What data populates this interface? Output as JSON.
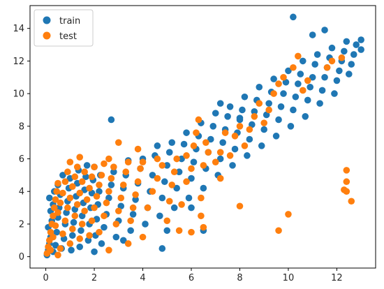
{
  "chart_data": {
    "type": "scatter",
    "title": "",
    "xlabel": "",
    "ylabel": "",
    "xlim": [
      -0.65,
      13.6
    ],
    "ylim": [
      -0.7,
      15.4
    ],
    "x_ticks": [
      0,
      2,
      4,
      6,
      8,
      10,
      12
    ],
    "y_ticks": [
      0,
      2,
      4,
      6,
      8,
      10,
      12,
      14
    ],
    "grid": false,
    "legend_position": "top-left",
    "series": [
      {
        "name": "train",
        "color": "#1f77b4",
        "points": [
          [
            0.05,
            0.1
          ],
          [
            0.1,
            0.4
          ],
          [
            0.15,
            0.8
          ],
          [
            0.2,
            1.2
          ],
          [
            0.1,
            1.8
          ],
          [
            0.25,
            2.2
          ],
          [
            0.2,
            2.8
          ],
          [
            0.3,
            3.2
          ],
          [
            0.15,
            3.6
          ],
          [
            0.35,
            4.0
          ],
          [
            0.3,
            0.3
          ],
          [
            0.4,
            0.7
          ],
          [
            0.45,
            1.5
          ],
          [
            0.5,
            2.4
          ],
          [
            0.55,
            3.0
          ],
          [
            0.6,
            3.8
          ],
          [
            0.5,
            4.4
          ],
          [
            0.7,
            5.0
          ],
          [
            0.65,
            0.5
          ],
          [
            0.75,
            1.1
          ],
          [
            0.8,
            2.0
          ],
          [
            0.85,
            2.7
          ],
          [
            0.9,
            3.4
          ],
          [
            0.95,
            4.2
          ],
          [
            1.0,
            4.8
          ],
          [
            1.05,
            0.4
          ],
          [
            1.1,
            1.3
          ],
          [
            1.15,
            2.1
          ],
          [
            1.2,
            2.9
          ],
          [
            1.25,
            3.7
          ],
          [
            1.3,
            4.5
          ],
          [
            1.35,
            5.3
          ],
          [
            1.4,
            0.6
          ],
          [
            1.45,
            1.6
          ],
          [
            1.5,
            2.5
          ],
          [
            1.55,
            3.3
          ],
          [
            1.6,
            4.1
          ],
          [
            1.65,
            4.9
          ],
          [
            1.7,
            5.6
          ],
          [
            1.75,
            1.0
          ],
          [
            1.8,
            2.0
          ],
          [
            1.85,
            3.0
          ],
          [
            1.9,
            3.9
          ],
          [
            1.95,
            4.7
          ],
          [
            2.0,
            5.5
          ],
          [
            2.05,
            1.3
          ],
          [
            2.1,
            2.3
          ],
          [
            2.15,
            3.2
          ],
          [
            2.2,
            4.0
          ],
          [
            2.25,
            5.0
          ],
          [
            2.3,
            0.8
          ],
          [
            2.4,
            1.8
          ],
          [
            2.5,
            2.6
          ],
          [
            2.6,
            3.6
          ],
          [
            2.7,
            4.4
          ],
          [
            2.8,
            5.2
          ],
          [
            2.9,
            1.2
          ],
          [
            3.0,
            2.2
          ],
          [
            3.1,
            3.1
          ],
          [
            3.2,
            4.2
          ],
          [
            3.3,
            5.0
          ],
          [
            3.4,
            5.9
          ],
          [
            3.5,
            1.6
          ],
          [
            3.6,
            2.6
          ],
          [
            3.7,
            3.5
          ],
          [
            3.8,
            4.5
          ],
          [
            3.9,
            5.4
          ],
          [
            4.0,
            6.0
          ],
          [
            4.1,
            2.0
          ],
          [
            4.2,
            3.0
          ],
          [
            4.3,
            4.0
          ],
          [
            4.4,
            5.0
          ],
          [
            4.5,
            6.2
          ],
          [
            4.6,
            6.8
          ],
          [
            4.7,
            2.5
          ],
          [
            4.8,
            3.6
          ],
          [
            4.9,
            4.6
          ],
          [
            5.0,
            5.6
          ],
          [
            5.1,
            6.4
          ],
          [
            5.2,
            7.0
          ],
          [
            5.3,
            3.0
          ],
          [
            5.4,
            4.2
          ],
          [
            5.5,
            5.2
          ],
          [
            5.6,
            6.0
          ],
          [
            5.7,
            6.9
          ],
          [
            5.8,
            7.6
          ],
          [
            5.9,
            3.6
          ],
          [
            6.0,
            4.8
          ],
          [
            6.1,
            5.8
          ],
          [
            6.2,
            6.6
          ],
          [
            6.3,
            7.4
          ],
          [
            6.4,
            8.2
          ],
          [
            6.5,
            4.2
          ],
          [
            6.6,
            5.4
          ],
          [
            6.7,
            6.4
          ],
          [
            6.8,
            7.2
          ],
          [
            6.9,
            8.0
          ],
          [
            7.0,
            8.8
          ],
          [
            7.1,
            5.0
          ],
          [
            7.2,
            6.0
          ],
          [
            7.3,
            7.0
          ],
          [
            7.4,
            7.8
          ],
          [
            7.5,
            8.6
          ],
          [
            7.6,
            9.2
          ],
          [
            7.7,
            5.6
          ],
          [
            7.8,
            6.6
          ],
          [
            7.9,
            7.6
          ],
          [
            8.0,
            8.4
          ],
          [
            8.1,
            9.0
          ],
          [
            8.2,
            9.8
          ],
          [
            8.3,
            6.2
          ],
          [
            8.4,
            7.2
          ],
          [
            8.5,
            8.1
          ],
          [
            8.6,
            8.9
          ],
          [
            8.7,
            9.6
          ],
          [
            8.8,
            10.4
          ],
          [
            8.9,
            6.8
          ],
          [
            9.0,
            7.8
          ],
          [
            9.1,
            8.7
          ],
          [
            9.2,
            9.4
          ],
          [
            9.3,
            10.1
          ],
          [
            9.4,
            10.9
          ],
          [
            9.5,
            7.4
          ],
          [
            9.6,
            8.4
          ],
          [
            9.7,
            9.2
          ],
          [
            9.8,
            10.0
          ],
          [
            9.9,
            10.7
          ],
          [
            10.0,
            11.4
          ],
          [
            10.1,
            8.0
          ],
          [
            10.2,
            9.0
          ],
          [
            10.3,
            9.8
          ],
          [
            10.4,
            10.6
          ],
          [
            10.5,
            11.2
          ],
          [
            10.6,
            12.0
          ],
          [
            10.7,
            8.6
          ],
          [
            10.8,
            9.6
          ],
          [
            10.9,
            10.4
          ],
          [
            11.0,
            11.0
          ],
          [
            11.1,
            11.8
          ],
          [
            11.2,
            12.4
          ],
          [
            11.3,
            9.4
          ],
          [
            11.4,
            10.2
          ],
          [
            11.5,
            11.0
          ],
          [
            11.6,
            11.6
          ],
          [
            11.7,
            12.2
          ],
          [
            11.8,
            12.8
          ],
          [
            11.9,
            10.0
          ],
          [
            12.0,
            10.8
          ],
          [
            12.1,
            11.4
          ],
          [
            12.2,
            12.0
          ],
          [
            12.3,
            12.6
          ],
          [
            12.4,
            13.2
          ],
          [
            12.5,
            11.2
          ],
          [
            12.6,
            11.8
          ],
          [
            12.7,
            12.4
          ],
          [
            12.8,
            13.0
          ],
          [
            13.0,
            12.7
          ],
          [
            13.0,
            13.3
          ],
          [
            10.2,
            14.7
          ],
          [
            11.5,
            13.9
          ],
          [
            11.0,
            13.6
          ],
          [
            8.0,
            8.5
          ],
          [
            7.2,
            9.4
          ],
          [
            2.7,
            8.4
          ],
          [
            5.0,
            1.6
          ],
          [
            6.5,
            1.6
          ],
          [
            6.0,
            3.0
          ],
          [
            4.8,
            0.5
          ],
          [
            3.2,
            1.0
          ],
          [
            2.0,
            0.3
          ]
        ]
      },
      {
        "name": "test",
        "color": "#ff7f0e",
        "points": [
          [
            0.05,
            0.2
          ],
          [
            0.1,
            0.6
          ],
          [
            0.15,
            1.0
          ],
          [
            0.2,
            1.5
          ],
          [
            0.25,
            2.0
          ],
          [
            0.3,
            2.5
          ],
          [
            0.35,
            3.0
          ],
          [
            0.4,
            3.5
          ],
          [
            0.45,
            4.0
          ],
          [
            0.5,
            4.5
          ],
          [
            0.2,
            0.4
          ],
          [
            0.3,
            1.2
          ],
          [
            0.4,
            1.9
          ],
          [
            0.5,
            2.7
          ],
          [
            0.6,
            3.3
          ],
          [
            0.7,
            3.9
          ],
          [
            0.8,
            4.6
          ],
          [
            0.9,
            5.2
          ],
          [
            1.0,
            5.8
          ],
          [
            0.6,
            0.5
          ],
          [
            0.7,
            1.4
          ],
          [
            0.8,
            2.2
          ],
          [
            0.9,
            3.0
          ],
          [
            1.0,
            3.6
          ],
          [
            1.1,
            4.3
          ],
          [
            1.2,
            4.9
          ],
          [
            1.3,
            5.5
          ],
          [
            1.0,
            0.8
          ],
          [
            1.1,
            1.7
          ],
          [
            1.2,
            2.5
          ],
          [
            1.3,
            3.2
          ],
          [
            1.4,
            3.9
          ],
          [
            1.5,
            4.6
          ],
          [
            1.6,
            5.2
          ],
          [
            1.4,
            1.1
          ],
          [
            1.5,
            2.0
          ],
          [
            1.6,
            2.8
          ],
          [
            1.7,
            3.5
          ],
          [
            1.8,
            4.2
          ],
          [
            1.9,
            4.9
          ],
          [
            2.0,
            5.5
          ],
          [
            1.8,
            1.3
          ],
          [
            1.9,
            2.2
          ],
          [
            2.0,
            3.0
          ],
          [
            2.1,
            3.7
          ],
          [
            2.2,
            4.4
          ],
          [
            2.3,
            5.0
          ],
          [
            2.4,
            5.7
          ],
          [
            2.2,
            1.5
          ],
          [
            2.4,
            2.5
          ],
          [
            2.5,
            3.3
          ],
          [
            2.6,
            4.0
          ],
          [
            2.7,
            4.8
          ],
          [
            2.8,
            5.5
          ],
          [
            2.9,
            2.0
          ],
          [
            3.0,
            2.8
          ],
          [
            3.1,
            3.6
          ],
          [
            3.2,
            4.4
          ],
          [
            3.3,
            5.2
          ],
          [
            3.4,
            5.8
          ],
          [
            3.5,
            2.2
          ],
          [
            3.6,
            3.0
          ],
          [
            3.7,
            3.8
          ],
          [
            3.8,
            4.6
          ],
          [
            3.9,
            5.4
          ],
          [
            4.0,
            5.8
          ],
          [
            4.2,
            3.0
          ],
          [
            4.4,
            4.0
          ],
          [
            4.6,
            4.8
          ],
          [
            4.8,
            5.6
          ],
          [
            5.0,
            2.2
          ],
          [
            5.1,
            3.4
          ],
          [
            5.2,
            4.4
          ],
          [
            5.3,
            5.2
          ],
          [
            5.4,
            6.0
          ],
          [
            5.5,
            1.6
          ],
          [
            5.6,
            3.2
          ],
          [
            5.8,
            4.6
          ],
          [
            6.0,
            5.4
          ],
          [
            6.1,
            6.8
          ],
          [
            6.2,
            7.6
          ],
          [
            6.3,
            8.4
          ],
          [
            6.4,
            2.5
          ],
          [
            6.4,
            3.6
          ],
          [
            6.5,
            1.8
          ],
          [
            6.5,
            5.6
          ],
          [
            6.6,
            7.0
          ],
          [
            6.7,
            6.4
          ],
          [
            7.0,
            5.8
          ],
          [
            7.2,
            6.4
          ],
          [
            7.4,
            7.6
          ],
          [
            7.6,
            6.2
          ],
          [
            7.8,
            7.4
          ],
          [
            8.0,
            8.0
          ],
          [
            8.0,
            3.1
          ],
          [
            8.2,
            6.8
          ],
          [
            8.4,
            7.8
          ],
          [
            8.6,
            8.6
          ],
          [
            8.8,
            9.4
          ],
          [
            9.0,
            8.2
          ],
          [
            9.2,
            9.0
          ],
          [
            9.4,
            10.0
          ],
          [
            9.6,
            1.6
          ],
          [
            9.6,
            10.6
          ],
          [
            9.8,
            11.0
          ],
          [
            10.0,
            2.6
          ],
          [
            10.2,
            11.6
          ],
          [
            10.4,
            12.3
          ],
          [
            10.6,
            10.2
          ],
          [
            10.8,
            10.8
          ],
          [
            11.6,
            11.6
          ],
          [
            11.8,
            12.0
          ],
          [
            12.2,
            12.2
          ],
          [
            12.4,
            4.0
          ],
          [
            12.4,
            4.6
          ],
          [
            12.4,
            5.3
          ],
          [
            12.6,
            3.4
          ],
          [
            12.3,
            4.1
          ],
          [
            0.5,
            0.1
          ],
          [
            2.6,
            0.4
          ],
          [
            3.4,
            0.8
          ],
          [
            4.0,
            1.2
          ],
          [
            6.0,
            1.5
          ],
          [
            7.2,
            4.8
          ],
          [
            5.8,
            6.2
          ],
          [
            4.6,
            6.0
          ],
          [
            3.8,
            6.6
          ],
          [
            3.0,
            7.0
          ],
          [
            2.6,
            6.0
          ],
          [
            1.4,
            6.1
          ]
        ]
      }
    ]
  }
}
